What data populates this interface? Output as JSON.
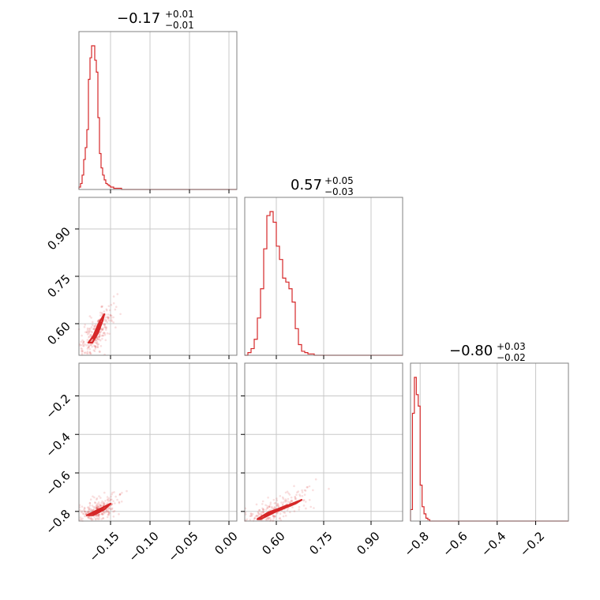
{
  "chart_data": {
    "type": "corner",
    "color": "#d62728",
    "parameters": [
      {
        "title_value": "−0.17",
        "title_plus": "+0.01",
        "title_minus": "−0.01",
        "range": [
          -0.19,
          0.01
        ],
        "ticks": [
          -0.15,
          -0.1,
          -0.05,
          0.0
        ],
        "tick_labels": [
          "−0.15",
          "−0.10",
          "−0.05",
          "0.00"
        ]
      },
      {
        "title_value": "0.57",
        "title_plus": "+0.05",
        "title_minus": "−0.03",
        "range": [
          0.5,
          1.0
        ],
        "ticks": [
          0.6,
          0.75,
          0.9
        ],
        "tick_labels": [
          "0.60",
          "0.75",
          "0.90"
        ]
      },
      {
        "title_value": "−0.80",
        "title_plus": "+0.03",
        "title_minus": "−0.02",
        "range": [
          -0.85,
          -0.03
        ],
        "ticks": [
          -0.8,
          -0.6,
          -0.4,
          -0.2
        ],
        "tick_labels": [
          "−0.8",
          "−0.6",
          "−0.4",
          "−0.2"
        ]
      }
    ],
    "histograms": [
      {
        "param": 0,
        "bin_start": -0.19,
        "bin_width": 0.002,
        "counts": [
          2,
          5,
          12,
          25,
          35,
          50,
          92,
          110,
          120,
          120,
          108,
          98,
          60,
          30,
          18,
          12,
          8,
          5,
          4,
          3,
          2,
          2,
          1,
          1,
          1,
          1,
          1,
          0,
          0,
          0
        ]
      },
      {
        "param": 1,
        "bin_start": 0.5,
        "bin_width": 0.01,
        "counts": [
          0,
          2,
          5,
          12,
          28,
          50,
          80,
          105,
          108,
          100,
          82,
          72,
          58,
          55,
          50,
          40,
          20,
          8,
          3,
          2,
          1,
          1,
          0
        ]
      },
      {
        "param": 2,
        "bin_start": -0.85,
        "bin_width": 0.01,
        "counts": [
          8,
          75,
          100,
          88,
          80,
          25,
          10,
          5,
          2,
          1
        ]
      }
    ],
    "scatter_2d": [
      {
        "x_param": 0,
        "y_param": 1,
        "center": [
          -0.168,
          0.57
        ],
        "level_1sigma": [
          [
            -0.178,
            0.54
          ],
          [
            -0.172,
            0.56
          ],
          [
            -0.165,
            0.6
          ],
          [
            -0.158,
            0.63
          ],
          [
            -0.16,
            0.61
          ],
          [
            -0.166,
            0.57
          ],
          [
            -0.173,
            0.54
          ]
        ]
      },
      {
        "x_param": 0,
        "y_param": 2,
        "center": [
          -0.168,
          -0.8
        ],
        "level_1sigma": [
          [
            -0.18,
            -0.82
          ],
          [
            -0.17,
            -0.8
          ],
          [
            -0.155,
            -0.77
          ],
          [
            -0.15,
            -0.76
          ],
          [
            -0.158,
            -0.79
          ],
          [
            -0.172,
            -0.82
          ]
        ]
      },
      {
        "x_param": 1,
        "y_param": 2,
        "center": [
          0.58,
          -0.8
        ],
        "level_1sigma": [
          [
            0.54,
            -0.84
          ],
          [
            0.57,
            -0.81
          ],
          [
            0.62,
            -0.78
          ],
          [
            0.68,
            -0.74
          ],
          [
            0.66,
            -0.76
          ],
          [
            0.6,
            -0.8
          ],
          [
            0.55,
            -0.84
          ]
        ]
      }
    ]
  }
}
